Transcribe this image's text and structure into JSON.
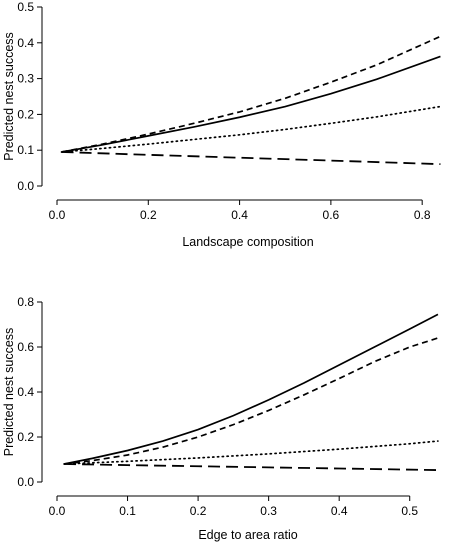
{
  "chart_data": [
    {
      "type": "line",
      "xlabel": "Landscape composition",
      "ylabel": "Predicted nest success",
      "xlim": [
        0,
        0.85
      ],
      "ylim": [
        0,
        0.5
      ],
      "xticks": [
        0.0,
        0.2,
        0.4,
        0.6,
        0.8
      ],
      "yticks": [
        0.0,
        0.1,
        0.2,
        0.3,
        0.4,
        0.5
      ],
      "xtick_labels": [
        "0.0",
        "0.2",
        "0.4",
        "0.6",
        "0.8"
      ],
      "ytick_labels": [
        "0.0",
        "0.1",
        "0.2",
        "0.3",
        "0.4",
        "0.5"
      ],
      "grid": false,
      "series": [
        {
          "style": "solid",
          "x": [
            0.01,
            0.1,
            0.2,
            0.3,
            0.4,
            0.5,
            0.6,
            0.7,
            0.84
          ],
          "y": [
            0.095,
            0.115,
            0.14,
            0.165,
            0.192,
            0.222,
            0.258,
            0.298,
            0.362
          ]
        },
        {
          "style": "short-dash",
          "x": [
            0.01,
            0.1,
            0.2,
            0.3,
            0.4,
            0.5,
            0.6,
            0.7,
            0.84
          ],
          "y": [
            0.095,
            0.117,
            0.145,
            0.175,
            0.207,
            0.245,
            0.29,
            0.338,
            0.418
          ]
        },
        {
          "style": "dotted",
          "x": [
            0.01,
            0.1,
            0.2,
            0.3,
            0.4,
            0.5,
            0.6,
            0.7,
            0.84
          ],
          "y": [
            0.095,
            0.105,
            0.117,
            0.13,
            0.143,
            0.158,
            0.175,
            0.193,
            0.222
          ]
        },
        {
          "style": "long-dash",
          "x": [
            0.01,
            0.2,
            0.4,
            0.6,
            0.84
          ],
          "y": [
            0.095,
            0.087,
            0.079,
            0.071,
            0.061
          ]
        }
      ]
    },
    {
      "type": "line",
      "xlabel": "Edge to area ratio",
      "ylabel": "Predicted nest success",
      "xlim": [
        0,
        0.55
      ],
      "ylim": [
        0,
        0.8
      ],
      "xticks": [
        0.0,
        0.1,
        0.2,
        0.3,
        0.4,
        0.5
      ],
      "yticks": [
        0.0,
        0.2,
        0.4,
        0.6,
        0.8
      ],
      "xtick_labels": [
        "0.0",
        "0.1",
        "0.2",
        "0.3",
        "0.4",
        "0.5"
      ],
      "ytick_labels": [
        "0.0",
        "0.2",
        "0.4",
        "0.6",
        "0.8"
      ],
      "grid": false,
      "series": [
        {
          "style": "solid",
          "x": [
            0.01,
            0.05,
            0.1,
            0.15,
            0.2,
            0.25,
            0.3,
            0.35,
            0.4,
            0.45,
            0.5,
            0.54
          ],
          "y": [
            0.08,
            0.105,
            0.14,
            0.182,
            0.233,
            0.295,
            0.365,
            0.44,
            0.52,
            0.6,
            0.68,
            0.745
          ]
        },
        {
          "style": "short-dash",
          "x": [
            0.01,
            0.05,
            0.1,
            0.15,
            0.2,
            0.25,
            0.3,
            0.35,
            0.4,
            0.45,
            0.5,
            0.54
          ],
          "y": [
            0.08,
            0.095,
            0.12,
            0.155,
            0.2,
            0.255,
            0.318,
            0.387,
            0.46,
            0.535,
            0.6,
            0.64
          ]
        },
        {
          "style": "dotted",
          "x": [
            0.01,
            0.1,
            0.2,
            0.3,
            0.4,
            0.5,
            0.54
          ],
          "y": [
            0.08,
            0.092,
            0.107,
            0.125,
            0.146,
            0.17,
            0.182
          ]
        },
        {
          "style": "long-dash",
          "x": [
            0.01,
            0.1,
            0.2,
            0.3,
            0.4,
            0.54
          ],
          "y": [
            0.08,
            0.075,
            0.07,
            0.065,
            0.06,
            0.053
          ]
        }
      ]
    }
  ]
}
